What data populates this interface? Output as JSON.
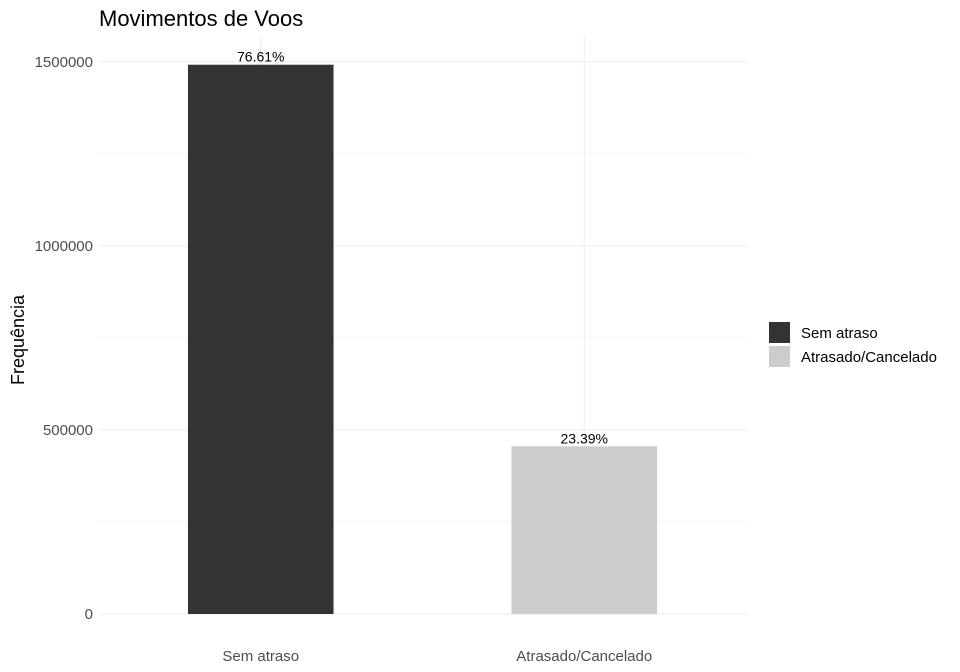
{
  "chart_data": {
    "type": "bar",
    "title": "Movimentos de Voos",
    "xlabel": "",
    "ylabel": "Frequência",
    "categories": [
      "Sem atraso",
      "Atrasado/Cancelado"
    ],
    "values": [
      1492000,
      455500
    ],
    "data_labels": [
      "76.61%",
      "23.39%"
    ],
    "colors": [
      "#333333",
      "#cccccc"
    ],
    "ylim": [
      0,
      1570000
    ],
    "yticks": [
      0,
      500000,
      1000000,
      1500000
    ],
    "ytick_labels": [
      "0",
      "500000",
      "1000000",
      "1500000"
    ],
    "grid": true,
    "legend": {
      "position": "right",
      "entries": [
        {
          "label": "Sem atraso",
          "color": "#333333"
        },
        {
          "label": "Atrasado/Cancelado",
          "color": "#cccccc"
        }
      ]
    }
  }
}
